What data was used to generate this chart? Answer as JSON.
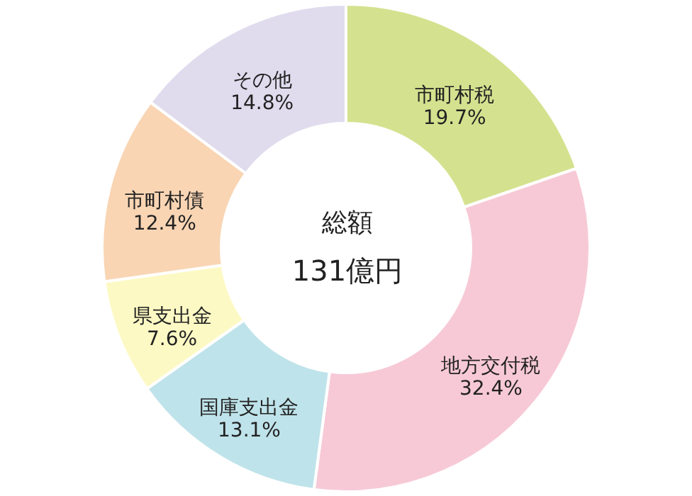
{
  "chart_data": {
    "type": "donut",
    "categories": [
      "市町村税",
      "地方交付税",
      "国庫支出金",
      "県支出金",
      "市町村債",
      "その他"
    ],
    "values": [
      19.7,
      32.4,
      13.1,
      7.6,
      12.4,
      14.8
    ],
    "colors": [
      "#d4e28f",
      "#f7c9d6",
      "#bfe3ea",
      "#fdf9c4",
      "#f9d5b4",
      "#e0dcee"
    ],
    "value_labels": [
      "19.7%",
      "32.4%",
      "13.1%",
      "7.6%",
      "12.4%",
      "14.8%"
    ],
    "annotations": [
      "総額",
      "131億円"
    ]
  }
}
